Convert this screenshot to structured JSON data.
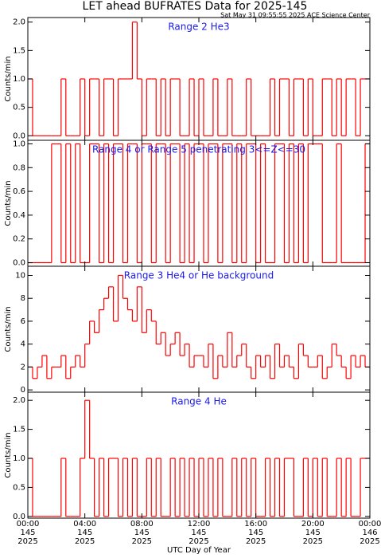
{
  "title": "LET ahead BUFRATES Data for 2025-145",
  "timestamp": "Sat May 31 09:55:55 2025 ACE Science Center",
  "x_axis": {
    "label": "UTC Day of Year",
    "xlim": [
      0,
      1440
    ],
    "xticks": [
      {
        "value": 0,
        "label": "00:00",
        "day": "145",
        "year": "2025"
      },
      {
        "value": 240,
        "label": "04:00",
        "day": "145",
        "year": "2025"
      },
      {
        "value": 480,
        "label": "08:00",
        "day": "145",
        "year": "2025"
      },
      {
        "value": 720,
        "label": "12:00",
        "day": "145",
        "year": "2025"
      },
      {
        "value": 960,
        "label": "16:00",
        "day": "145",
        "year": "2025"
      },
      {
        "value": 1200,
        "label": "20:00",
        "day": "145",
        "year": "2025"
      },
      {
        "value": 1440,
        "label": "00:00",
        "day": "146",
        "year": "2025"
      }
    ],
    "x": [
      0,
      20,
      40,
      60,
      80,
      100,
      120,
      140,
      160,
      180,
      200,
      220,
      240,
      260,
      280,
      300,
      320,
      340,
      360,
      380,
      400,
      420,
      440,
      460,
      480,
      500,
      520,
      540,
      560,
      580,
      600,
      620,
      640,
      660,
      680,
      700,
      720,
      740,
      760,
      780,
      800,
      820,
      840,
      860,
      880,
      900,
      920,
      940,
      960,
      980,
      1000,
      1020,
      1040,
      1060,
      1080,
      1100,
      1120,
      1140,
      1160,
      1180,
      1200,
      1220,
      1240,
      1260,
      1280,
      1300,
      1320,
      1340,
      1360,
      1380,
      1400,
      1420
    ]
  },
  "chart_data": [
    {
      "type": "step",
      "title": "Range 2 He3",
      "ylabel": "Counts/min",
      "ylim": [
        -0.08,
        2.08
      ],
      "yticks": [
        {
          "value": 0,
          "label": "0.0"
        },
        {
          "value": 0.5,
          "label": "0.5"
        },
        {
          "value": 1,
          "label": "1.0"
        },
        {
          "value": 1.5,
          "label": "1.5"
        },
        {
          "value": 2,
          "label": "2.0"
        }
      ],
      "series": [
        {
          "color": "#ff0000",
          "values": [
            1,
            0,
            0,
            0,
            0,
            0,
            0,
            1,
            0,
            0,
            0,
            1,
            0,
            1,
            1,
            0,
            1,
            1,
            0,
            1,
            1,
            1,
            2,
            1,
            0,
            1,
            1,
            0,
            1,
            0,
            1,
            1,
            0,
            0,
            1,
            0,
            1,
            0,
            0,
            1,
            0,
            0,
            1,
            0,
            0,
            0,
            1,
            0,
            0,
            0,
            0,
            1,
            0,
            1,
            1,
            0,
            1,
            1,
            0,
            1,
            0,
            0,
            1,
            1,
            0,
            1,
            0,
            1,
            1,
            0,
            1,
            1
          ]
        }
      ]
    },
    {
      "type": "step",
      "title": "Range 4 or Range 5 penetrating 3<=Z<=30",
      "ylabel": "Counts/min",
      "ylim": [
        -0.03,
        1.03
      ],
      "yticks": [
        {
          "value": 0,
          "label": "0.0"
        },
        {
          "value": 0.2,
          "label": "0.2"
        },
        {
          "value": 0.4,
          "label": "0.4"
        },
        {
          "value": 0.6,
          "label": "0.6"
        },
        {
          "value": 0.8,
          "label": "0.8"
        },
        {
          "value": 1,
          "label": "1.0"
        }
      ],
      "series": [
        {
          "color": "#ff0000",
          "values": [
            0,
            0,
            0,
            0,
            0,
            1,
            1,
            0,
            1,
            0,
            1,
            0,
            0,
            1,
            1,
            0,
            1,
            0,
            1,
            1,
            0,
            1,
            1,
            0,
            1,
            1,
            0,
            1,
            1,
            0,
            1,
            1,
            0,
            1,
            0,
            1,
            1,
            0,
            1,
            1,
            0,
            1,
            1,
            0,
            1,
            0,
            1,
            1,
            0,
            1,
            0,
            0,
            1,
            1,
            0,
            1,
            0,
            1,
            0,
            1,
            1,
            1,
            0,
            0,
            0,
            1,
            0,
            0,
            0,
            0,
            0,
            1
          ]
        }
      ]
    },
    {
      "type": "step",
      "title": "Range 3 He4 or He background",
      "ylabel": "Counts/min",
      "ylim": [
        -0.2,
        10.8
      ],
      "yticks": [
        0,
        2,
        4,
        6,
        8,
        10
      ],
      "series": [
        {
          "color": "#ff0000",
          "values": [
            2,
            1,
            2,
            3,
            1,
            2,
            2,
            3,
            1,
            2,
            3,
            2,
            4,
            6,
            5,
            7,
            8,
            9,
            6,
            10,
            8,
            7,
            6,
            9,
            5,
            7,
            6,
            4,
            5,
            3,
            4,
            5,
            3,
            4,
            2,
            3,
            3,
            2,
            4,
            1,
            3,
            2,
            5,
            2,
            3,
            4,
            2,
            1,
            3,
            2,
            3,
            1,
            4,
            2,
            3,
            2,
            1,
            4,
            3,
            2,
            2,
            3,
            1,
            2,
            4,
            3,
            2,
            1,
            3,
            2,
            3,
            2
          ]
        }
      ]
    },
    {
      "type": "step",
      "title": "Range 4 He",
      "ylabel": "Counts/min",
      "ylim": [
        -0.03,
        2.14
      ],
      "yticks": [
        {
          "value": 0,
          "label": "0.0"
        },
        {
          "value": 0.5,
          "label": "0.5"
        },
        {
          "value": 1,
          "label": "1.0"
        },
        {
          "value": 1.5,
          "label": "1.5"
        },
        {
          "value": 2,
          "label": "2.0"
        }
      ],
      "series": [
        {
          "color": "#ff0000",
          "values": [
            1,
            0,
            0,
            0,
            0,
            0,
            0,
            1,
            0,
            0,
            0,
            1,
            2,
            1,
            0,
            1,
            0,
            1,
            1,
            0,
            1,
            0,
            1,
            0,
            0,
            1,
            0,
            1,
            0,
            0,
            1,
            0,
            1,
            0,
            1,
            0,
            1,
            0,
            1,
            0,
            1,
            0,
            0,
            1,
            0,
            1,
            0,
            1,
            0,
            0,
            1,
            0,
            1,
            0,
            1,
            1,
            0,
            0,
            1,
            0,
            1,
            0,
            1,
            0,
            0,
            1,
            0,
            1,
            0,
            0,
            1,
            1
          ]
        }
      ]
    }
  ]
}
